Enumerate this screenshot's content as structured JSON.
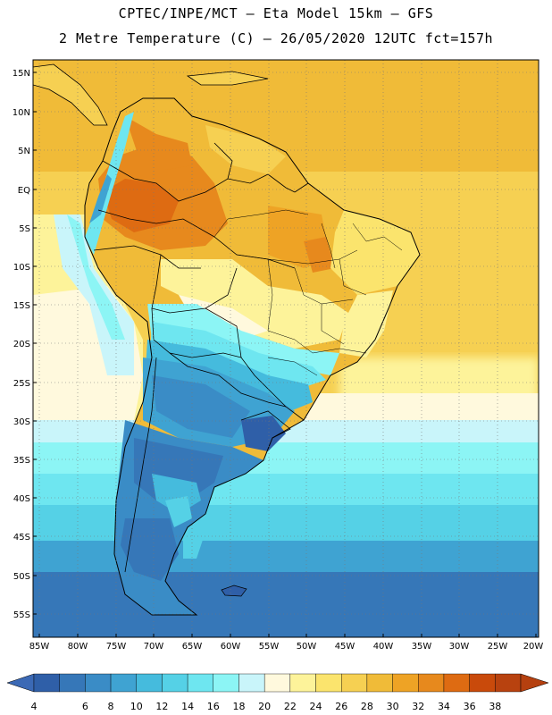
{
  "header": {
    "line1": "CPTEC/INPE/MCT –  Eta Model 15km – GFS",
    "line2": "2 Metre Temperature (C) – 26/05/2020 12UTC fct=157h"
  },
  "map": {
    "lat_labels": [
      "15N",
      "10N",
      "5N",
      "EQ",
      "5S",
      "10S",
      "15S",
      "20S",
      "25S",
      "30S",
      "35S",
      "40S",
      "45S",
      "50S",
      "55S"
    ],
    "lon_labels": [
      "85W",
      "80W",
      "75W",
      "70W",
      "65W",
      "60W",
      "55W",
      "50W",
      "45W",
      "40W",
      "35W",
      "30W",
      "25W",
      "20W"
    ]
  },
  "colorbar": {
    "labels": [
      "4",
      "6",
      "8",
      "10",
      "12",
      "14",
      "16",
      "18",
      "20",
      "22",
      "24",
      "26",
      "28",
      "30",
      "32",
      "34",
      "36",
      "38"
    ],
    "colors": [
      "#2f5fa8",
      "#3677b8",
      "#3a8cc6",
      "#3fa3d2",
      "#45bbdd",
      "#55d1e6",
      "#6ee6f0",
      "#8cf5f5",
      "#c9f5fa",
      "#fff9dd",
      "#fdf39a",
      "#fbe46d",
      "#f6d052",
      "#f0bb38",
      "#eea325",
      "#e7891d",
      "#de6b12",
      "#c94a0b",
      "#b8420f"
    ],
    "under_color": "#3b69b5",
    "over_color": "#b5400f"
  }
}
